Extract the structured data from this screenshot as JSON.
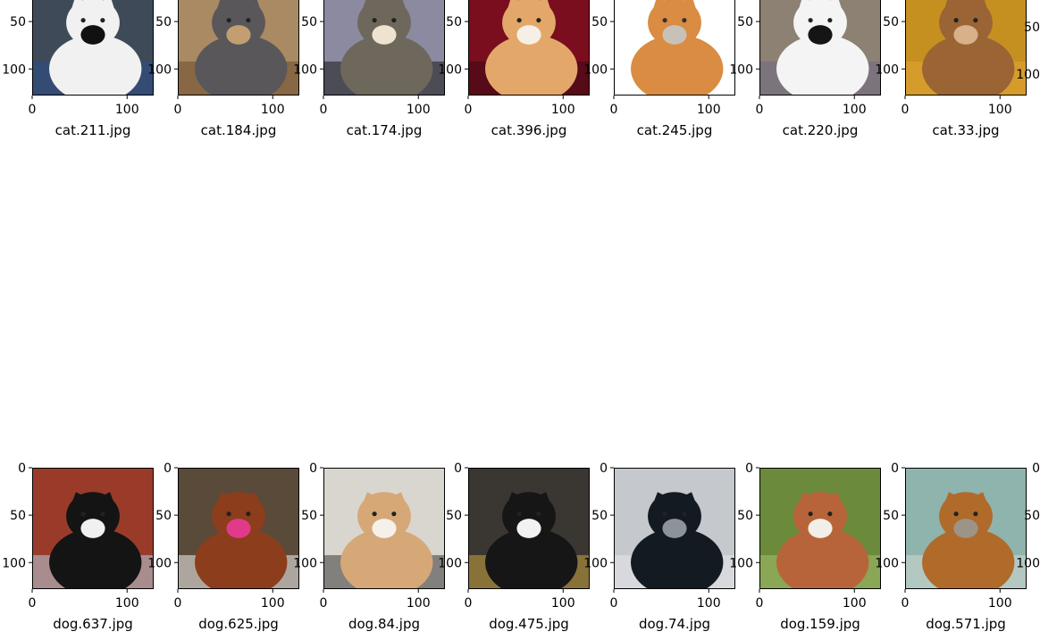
{
  "figure": {
    "rows": [
      {
        "x_ticks": [
          "0",
          "100"
        ],
        "y_ticks": [
          "50",
          "100"
        ],
        "panels": [
          {
            "label": "cat.211.jpg",
            "y_ticks": [
              "50",
              "100"
            ],
            "scene": {
              "bg": "#3f4a58",
              "main": "#f1f1f1",
              "accent": "#111111",
              "accent2": "#2b4d8c"
            }
          },
          {
            "label": "cat.184.jpg",
            "y_ticks": [
              "50",
              "100"
            ],
            "scene": {
              "bg": "#a98a62",
              "main": "#59575a",
              "accent": "#c39e71",
              "accent2": "#6b4a2b"
            }
          },
          {
            "label": "cat.174.jpg",
            "y_ticks": [
              "50",
              "100"
            ],
            "scene": {
              "bg": "#8b8aa0",
              "main": "#6e675c",
              "accent": "#efe2cf",
              "accent2": "#1a1a1a"
            }
          },
          {
            "label": "cat.396.jpg",
            "y_ticks": [
              "50",
              "100"
            ],
            "scene": {
              "bg": "#7a0d1e",
              "main": "#e3a869",
              "accent": "#f6efe6",
              "accent2": "#3b0a12"
            }
          },
          {
            "label": "cat.245.jpg",
            "y_ticks": [
              "50",
              "100"
            ],
            "scene": {
              "bg": "#ffffff",
              "main": "#d98c42",
              "accent": "#c7c1b8",
              "accent2": "#ffffff"
            }
          },
          {
            "label": "cat.220.jpg",
            "y_ticks": [
              "50",
              "100"
            ],
            "scene": {
              "bg": "#8c8172",
              "main": "#f4f4f4",
              "accent": "#151515",
              "accent2": "#6f6a86"
            }
          },
          {
            "label": "cat.33.jpg",
            "y_ticks": [
              "50",
              "100"
            ],
            "scene": {
              "bg": "#c59020",
              "main": "#9a6434",
              "accent": "#d8b08a",
              "accent2": "#e2a636"
            }
          }
        ]
      },
      {
        "x_ticks": [
          "0",
          "100"
        ],
        "y_ticks": [
          "0",
          "50",
          "100"
        ],
        "panels": [
          {
            "label": "dog.637.jpg",
            "scene": {
              "bg": "#9a3b2a",
              "main": "#141414",
              "accent": "#f0f0f0",
              "accent2": "#b6cfe0"
            }
          },
          {
            "label": "dog.625.jpg",
            "scene": {
              "bg": "#5a4a3a",
              "main": "#8c3d1c",
              "accent": "#e23a8a",
              "accent2": "#f2f2f2"
            }
          },
          {
            "label": "dog.84.jpg",
            "scene": {
              "bg": "#d9d6cf",
              "main": "#d6a877",
              "accent": "#f5f1ea",
              "accent2": "#3a3a3a"
            }
          },
          {
            "label": "dog.475.jpg",
            "scene": {
              "bg": "#3a3632",
              "main": "#161616",
              "accent": "#f2f2f2",
              "accent2": "#c8a43e"
            }
          },
          {
            "label": "dog.74.jpg",
            "scene": {
              "bg": "#c5c8cc",
              "main": "#141a22",
              "accent": "#8c939b",
              "accent2": "#e6e8ea"
            }
          },
          {
            "label": "dog.159.jpg",
            "scene": {
              "bg": "#6c8a3c",
              "main": "#b8643a",
              "accent": "#f2eee8",
              "accent2": "#a3c06a"
            }
          },
          {
            "label": "dog.571.jpg",
            "scene": {
              "bg": "#8fb3ad",
              "main": "#b06a2a",
              "accent": "#9c9486",
              "accent2": "#cfd8cf"
            }
          }
        ]
      }
    ]
  },
  "chart_data": {
    "type": "image-grid",
    "x_range": [
      0,
      128
    ],
    "y_range": [
      0,
      128
    ],
    "x_ticks": [
      0,
      100
    ],
    "y_ticks_top_row": [
      50,
      100
    ],
    "y_ticks_bottom_row": [
      0,
      50,
      100
    ],
    "panels": [
      "cat.211.jpg",
      "cat.184.jpg",
      "cat.174.jpg",
      "cat.396.jpg",
      "cat.245.jpg",
      "cat.220.jpg",
      "cat.33.jpg",
      "dog.637.jpg",
      "dog.625.jpg",
      "dog.84.jpg",
      "dog.475.jpg",
      "dog.74.jpg",
      "dog.159.jpg",
      "dog.571.jpg"
    ]
  }
}
